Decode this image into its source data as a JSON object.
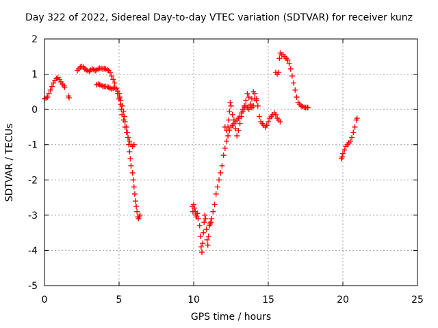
{
  "chart_data": {
    "type": "scatter",
    "title": "Day 322 of 2022, Sidereal Day-to-day VTEC variation (SDTVAR) for receiver kunz",
    "xlabel": "GPS time / hours",
    "ylabel": "SDTVAR / TECUs",
    "xlim": [
      0,
      25
    ],
    "ylim": [
      -5,
      2
    ],
    "xticks": [
      "0",
      "5",
      "10",
      "15",
      "20",
      "25"
    ],
    "yticks": [
      "-5",
      "-4",
      "-3",
      "-2",
      "-1",
      "0",
      "1",
      "2"
    ],
    "grid": true,
    "marker": "+",
    "color": "#ff0000",
    "series": [
      {
        "points": [
          [
            0.0,
            0.3
          ],
          [
            0.1,
            0.32
          ],
          [
            0.2,
            0.35
          ],
          [
            0.3,
            0.45
          ],
          [
            0.4,
            0.55
          ],
          [
            0.5,
            0.65
          ],
          [
            0.6,
            0.75
          ],
          [
            0.7,
            0.82
          ],
          [
            0.8,
            0.88
          ],
          [
            0.9,
            0.9
          ],
          [
            1.0,
            0.85
          ],
          [
            1.1,
            0.78
          ],
          [
            1.2,
            0.72
          ],
          [
            1.3,
            0.67
          ],
          [
            1.35,
            0.63
          ],
          [
            1.6,
            0.38
          ],
          [
            1.65,
            0.33
          ],
          [
            2.2,
            1.1
          ],
          [
            2.3,
            1.15
          ],
          [
            2.4,
            1.2
          ],
          [
            2.5,
            1.22
          ],
          [
            2.6,
            1.2
          ],
          [
            2.7,
            1.15
          ],
          [
            2.8,
            1.12
          ],
          [
            2.9,
            1.1
          ],
          [
            3.0,
            1.08
          ],
          [
            3.1,
            1.12
          ],
          [
            3.2,
            1.15
          ],
          [
            3.3,
            1.13
          ],
          [
            3.4,
            1.1
          ],
          [
            3.5,
            1.12
          ],
          [
            3.6,
            1.15
          ],
          [
            3.7,
            1.17
          ],
          [
            3.8,
            1.16
          ],
          [
            3.9,
            1.15
          ],
          [
            4.0,
            1.16
          ],
          [
            4.1,
            1.15
          ],
          [
            4.2,
            1.13
          ],
          [
            4.3,
            1.1
          ],
          [
            4.4,
            1.05
          ],
          [
            4.5,
            0.95
          ],
          [
            4.6,
            0.85
          ],
          [
            4.7,
            0.75
          ],
          [
            4.8,
            0.6
          ],
          [
            4.9,
            0.45
          ],
          [
            5.0,
            0.3
          ],
          [
            5.1,
            0.15
          ],
          [
            5.15,
            0.0
          ],
          [
            5.2,
            -0.15
          ],
          [
            5.3,
            -0.3
          ],
          [
            5.4,
            -0.5
          ],
          [
            5.5,
            -0.65
          ],
          [
            5.6,
            -0.8
          ],
          [
            5.65,
            -1.0
          ],
          [
            5.7,
            -1.2
          ],
          [
            5.75,
            -1.4
          ],
          [
            5.8,
            -1.6
          ],
          [
            5.9,
            -1.8
          ],
          [
            5.95,
            -2.0
          ],
          [
            6.0,
            -2.2
          ],
          [
            6.05,
            -2.4
          ],
          [
            6.1,
            -2.6
          ],
          [
            6.15,
            -2.75
          ],
          [
            6.2,
            -2.9
          ],
          [
            6.25,
            -3.05
          ],
          [
            6.3,
            -3.1
          ],
          [
            6.35,
            -3.05
          ],
          [
            6.4,
            -3.0
          ],
          [
            3.5,
            0.7
          ],
          [
            3.6,
            0.72
          ],
          [
            3.7,
            0.7
          ],
          [
            3.8,
            0.68
          ],
          [
            3.9,
            0.66
          ],
          [
            4.0,
            0.65
          ],
          [
            4.1,
            0.65
          ],
          [
            4.2,
            0.64
          ],
          [
            4.3,
            0.63
          ],
          [
            4.4,
            0.6
          ],
          [
            4.5,
            0.58
          ],
          [
            4.6,
            0.6
          ],
          [
            4.7,
            0.62
          ],
          [
            4.8,
            0.58
          ],
          [
            4.9,
            0.52
          ],
          [
            5.0,
            0.45
          ],
          [
            5.05,
            0.35
          ],
          [
            5.1,
            0.25
          ],
          [
            5.2,
            0.1
          ],
          [
            5.3,
            -0.05
          ],
          [
            5.35,
            -0.2
          ],
          [
            5.4,
            -0.35
          ],
          [
            5.5,
            -0.5
          ],
          [
            5.55,
            -0.65
          ],
          [
            5.6,
            -0.8
          ],
          [
            5.7,
            -0.9
          ],
          [
            5.8,
            -1.0
          ],
          [
            5.9,
            -1.05
          ],
          [
            6.0,
            -1.0
          ],
          [
            9.9,
            -2.75
          ],
          [
            9.95,
            -2.9
          ],
          [
            10.0,
            -2.7
          ],
          [
            10.05,
            -2.8
          ],
          [
            10.1,
            -2.9
          ],
          [
            10.15,
            -3.0
          ],
          [
            10.2,
            -3.05
          ],
          [
            10.25,
            -2.95
          ],
          [
            10.3,
            -3.1
          ],
          [
            10.4,
            -3.3
          ],
          [
            10.45,
            -3.6
          ],
          [
            10.5,
            -3.9
          ],
          [
            10.55,
            -4.05
          ],
          [
            10.6,
            -3.8
          ],
          [
            10.65,
            -3.5
          ],
          [
            10.7,
            -3.2
          ],
          [
            10.75,
            -3.0
          ],
          [
            10.8,
            -3.1
          ],
          [
            10.85,
            -3.4
          ],
          [
            10.9,
            -3.7
          ],
          [
            10.95,
            -3.85
          ],
          [
            11.0,
            -3.6
          ],
          [
            11.05,
            -3.3
          ],
          [
            11.1,
            -3.25
          ],
          [
            11.15,
            -3.2
          ],
          [
            11.2,
            -3.1
          ],
          [
            11.3,
            -2.9
          ],
          [
            11.4,
            -2.7
          ],
          [
            11.5,
            -2.4
          ],
          [
            11.6,
            -2.2
          ],
          [
            11.7,
            -2.0
          ],
          [
            11.8,
            -1.8
          ],
          [
            11.9,
            -1.6
          ],
          [
            12.0,
            -1.3
          ],
          [
            12.1,
            -1.1
          ],
          [
            12.2,
            -0.9
          ],
          [
            12.3,
            -0.75
          ],
          [
            12.4,
            -0.6
          ],
          [
            12.5,
            -0.5
          ],
          [
            12.6,
            -0.45
          ],
          [
            12.7,
            -0.4
          ],
          [
            12.8,
            -0.35
          ],
          [
            12.9,
            -0.3
          ],
          [
            13.0,
            -0.25
          ],
          [
            13.1,
            -0.2
          ],
          [
            13.2,
            -0.1
          ],
          [
            13.3,
            0.0
          ],
          [
            13.4,
            0.05
          ],
          [
            13.5,
            0.1
          ],
          [
            13.6,
            0.05
          ],
          [
            13.7,
            0.0
          ],
          [
            13.8,
            0.1
          ],
          [
            13.9,
            0.3
          ],
          [
            14.0,
            0.5
          ],
          [
            14.1,
            0.45
          ],
          [
            14.2,
            0.3
          ],
          [
            14.3,
            0.1
          ],
          [
            14.4,
            -0.2
          ],
          [
            14.5,
            -0.35
          ],
          [
            14.6,
            -0.4
          ],
          [
            14.7,
            -0.45
          ],
          [
            14.8,
            -0.5
          ],
          [
            14.9,
            -0.45
          ],
          [
            15.0,
            -0.35
          ],
          [
            15.1,
            -0.25
          ],
          [
            15.2,
            -0.2
          ],
          [
            15.3,
            -0.15
          ],
          [
            15.4,
            -0.1
          ],
          [
            15.5,
            -0.15
          ],
          [
            15.6,
            -0.25
          ],
          [
            15.7,
            -0.3
          ],
          [
            15.8,
            -0.35
          ],
          [
            12.1,
            -0.5
          ],
          [
            12.2,
            -0.6
          ],
          [
            12.3,
            -0.5
          ],
          [
            12.35,
            -0.3
          ],
          [
            12.4,
            -0.05
          ],
          [
            12.45,
            0.2
          ],
          [
            12.5,
            0.1
          ],
          [
            12.6,
            -0.15
          ],
          [
            12.7,
            -0.3
          ],
          [
            12.8,
            -0.55
          ],
          [
            12.9,
            -0.75
          ],
          [
            13.0,
            -0.6
          ],
          [
            13.1,
            -0.4
          ],
          [
            13.2,
            -0.2
          ],
          [
            13.3,
            -0.05
          ],
          [
            13.4,
            0.1
          ],
          [
            13.5,
            0.25
          ],
          [
            13.6,
            0.45
          ],
          [
            13.7,
            0.35
          ],
          [
            13.8,
            0.15
          ],
          [
            13.9,
            0.05
          ],
          [
            14.0,
            0.1
          ],
          [
            14.1,
            0.3
          ],
          [
            14.2,
            0.25
          ],
          [
            15.5,
            1.05
          ],
          [
            15.6,
            1.0
          ],
          [
            15.7,
            1.05
          ],
          [
            15.75,
            1.45
          ],
          [
            15.8,
            1.6
          ],
          [
            15.9,
            1.55
          ],
          [
            16.0,
            1.55
          ],
          [
            16.1,
            1.5
          ],
          [
            16.2,
            1.45
          ],
          [
            16.3,
            1.4
          ],
          [
            16.4,
            1.3
          ],
          [
            16.5,
            1.15
          ],
          [
            16.6,
            0.95
          ],
          [
            16.7,
            0.75
          ],
          [
            16.8,
            0.55
          ],
          [
            16.9,
            0.35
          ],
          [
            17.0,
            0.2
          ],
          [
            17.1,
            0.15
          ],
          [
            17.2,
            0.1
          ],
          [
            17.3,
            0.08
          ],
          [
            17.4,
            0.06
          ],
          [
            17.5,
            0.05
          ],
          [
            17.6,
            0.06
          ],
          [
            17.65,
            0.05
          ],
          [
            19.9,
            -1.4
          ],
          [
            19.95,
            -1.35
          ],
          [
            20.0,
            -1.25
          ],
          [
            20.1,
            -1.15
          ],
          [
            20.2,
            -1.05
          ],
          [
            20.3,
            -1.0
          ],
          [
            20.4,
            -0.95
          ],
          [
            20.5,
            -0.9
          ],
          [
            20.6,
            -0.8
          ],
          [
            20.7,
            -0.65
          ],
          [
            20.8,
            -0.5
          ],
          [
            20.9,
            -0.3
          ],
          [
            20.95,
            -0.25
          ]
        ]
      }
    ]
  }
}
